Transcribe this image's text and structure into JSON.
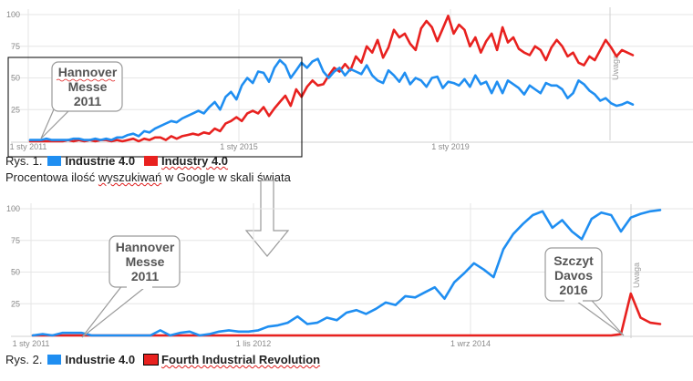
{
  "colors": {
    "blue": "#1f8ef1",
    "red": "#e8211f",
    "grid": "#e6e6e6",
    "frame": "#000000"
  },
  "figure1": {
    "label": "Rys. 1.",
    "caption_parts": [
      "Procentowa ilość ",
      "wyszukiwań",
      " w Google w skali świata"
    ],
    "callout": [
      "Hannover",
      "Messe",
      "2011"
    ],
    "note": "Uwaga"
  },
  "figure2": {
    "label": "Rys. 2.",
    "callout1": [
      "Hannover",
      "Messe",
      "2011"
    ],
    "callout2": [
      "Szczyt",
      "Davos",
      "2016"
    ],
    "note": "Uwaga"
  },
  "chart_data": [
    {
      "type": "line",
      "ylim": [
        0,
        100
      ],
      "yticks": [
        "100",
        "75",
        "50",
        "25"
      ],
      "xticks": [
        "1 sty 2011",
        "1 sty 2015",
        "1 sty 2019"
      ],
      "series": [
        {
          "name": "Industrie 4.0",
          "color": "#1f8ef1",
          "values": [
            1,
            1,
            1,
            2,
            1,
            1,
            1,
            1,
            2,
            2,
            1,
            1,
            2,
            1,
            2,
            1,
            3,
            3,
            5,
            6,
            4,
            8,
            7,
            10,
            12,
            14,
            16,
            15,
            18,
            20,
            22,
            24,
            22,
            27,
            31,
            25,
            35,
            39,
            33,
            44,
            50,
            46,
            55,
            54,
            47,
            58,
            64,
            60,
            50,
            56,
            62,
            58,
            63,
            65,
            55,
            50,
            55,
            58,
            52,
            57,
            55,
            53,
            60,
            52,
            48,
            46,
            56,
            52,
            47,
            54,
            45,
            50,
            48,
            43,
            50,
            51,
            42,
            47,
            46,
            44,
            49,
            43,
            52,
            45,
            47,
            38,
            47,
            38,
            48,
            45,
            42,
            37,
            44,
            41,
            38,
            46,
            44,
            44,
            41,
            34,
            38,
            48,
            45,
            40,
            37,
            32,
            34,
            30,
            28,
            29,
            31,
            29
          ]
        },
        {
          "name": "Industry 4.0",
          "color": "#e8211f",
          "values": [
            0,
            0,
            0,
            0,
            0,
            0,
            0,
            1,
            0,
            1,
            0,
            1,
            0,
            1,
            1,
            0,
            1,
            0,
            1,
            2,
            0,
            2,
            1,
            3,
            3,
            1,
            4,
            2,
            4,
            5,
            6,
            5,
            7,
            6,
            10,
            8,
            14,
            16,
            19,
            16,
            22,
            24,
            22,
            27,
            20,
            26,
            31,
            36,
            28,
            41,
            35,
            43,
            48,
            44,
            45,
            52,
            58,
            55,
            61,
            56,
            67,
            62,
            75,
            70,
            80,
            66,
            74,
            88,
            82,
            85,
            77,
            72,
            89,
            95,
            90,
            79,
            89,
            99,
            85,
            92,
            88,
            75,
            82,
            70,
            79,
            85,
            72,
            90,
            78,
            82,
            73,
            70,
            68,
            75,
            72,
            64,
            74,
            80,
            75,
            67,
            70,
            62,
            60,
            67,
            64,
            72,
            80,
            74,
            67,
            72,
            70,
            68
          ]
        }
      ]
    },
    {
      "type": "line",
      "ylim": [
        0,
        100
      ],
      "yticks": [
        "100",
        "75",
        "50",
        "25"
      ],
      "xticks": [
        "1 sty 2011",
        "1 lis 2012",
        "1 wrz 2014"
      ],
      "series": [
        {
          "name": "Industrie 4.0",
          "color": "#1f8ef1",
          "values": [
            0,
            1,
            0,
            2,
            2,
            2,
            0,
            0,
            0,
            0,
            0,
            0,
            0,
            4,
            0,
            2,
            3,
            0,
            1,
            3,
            4,
            3,
            3,
            4,
            7,
            8,
            10,
            15,
            9,
            10,
            14,
            12,
            18,
            20,
            17,
            21,
            26,
            24,
            31,
            30,
            34,
            38,
            29,
            42,
            49,
            57,
            52,
            46,
            68,
            80,
            88,
            95,
            98,
            85,
            91,
            82,
            76,
            92,
            97,
            95,
            82,
            93,
            96,
            98,
            99
          ]
        },
        {
          "name": "Fourth Industrial Revolution",
          "color": "#e8211f",
          "values": [
            0,
            0,
            0,
            0,
            0,
            0,
            0,
            0,
            0,
            0,
            0,
            0,
            0,
            0,
            0,
            0,
            0,
            0,
            0,
            0,
            0,
            0,
            0,
            0,
            0,
            0,
            0,
            0,
            0,
            0,
            0,
            0,
            0,
            0,
            0,
            0,
            0,
            0,
            0,
            0,
            0,
            0,
            0,
            0,
            0,
            0,
            0,
            0,
            0,
            0,
            0,
            0,
            0,
            0,
            0,
            0,
            0,
            0,
            0,
            0,
            1,
            33,
            14,
            10,
            9
          ]
        }
      ]
    }
  ]
}
